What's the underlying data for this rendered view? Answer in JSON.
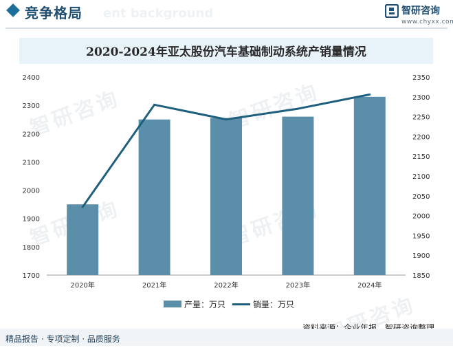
{
  "header": {
    "title": "竞争格局",
    "ghost_text": "ent background"
  },
  "brand": {
    "name": "智研咨询",
    "url": "www.chyxx.com",
    "color": "#1f4e72"
  },
  "watermark": {
    "text": "智研咨询"
  },
  "chart_data": {
    "type": "bar",
    "title": "2020-2024年亚太股份汽车基础制动系统产销量情况",
    "categories": [
      "2020年",
      "2021年",
      "2022年",
      "2023年",
      "2024年"
    ],
    "series": [
      {
        "name": "产量：万只",
        "type": "bar",
        "axis": "left",
        "color": "#5b8ea8",
        "values": [
          1950,
          2250,
          2255,
          2260,
          2330
        ]
      },
      {
        "name": "销量：万只",
        "type": "line",
        "axis": "right",
        "color": "#1e5f7e",
        "values": [
          2022,
          2280,
          2243,
          2270,
          2306
        ]
      }
    ],
    "y_left": {
      "min": 1700,
      "max": 2400,
      "step": 100
    },
    "y_right": {
      "min": 1850,
      "max": 2350,
      "step": 50
    },
    "grid": false,
    "legend_position": "bottom"
  },
  "source": "资料来源：企业年报、智研咨询整理",
  "footer": "精品报告 · 专项定制 · 品质服务"
}
